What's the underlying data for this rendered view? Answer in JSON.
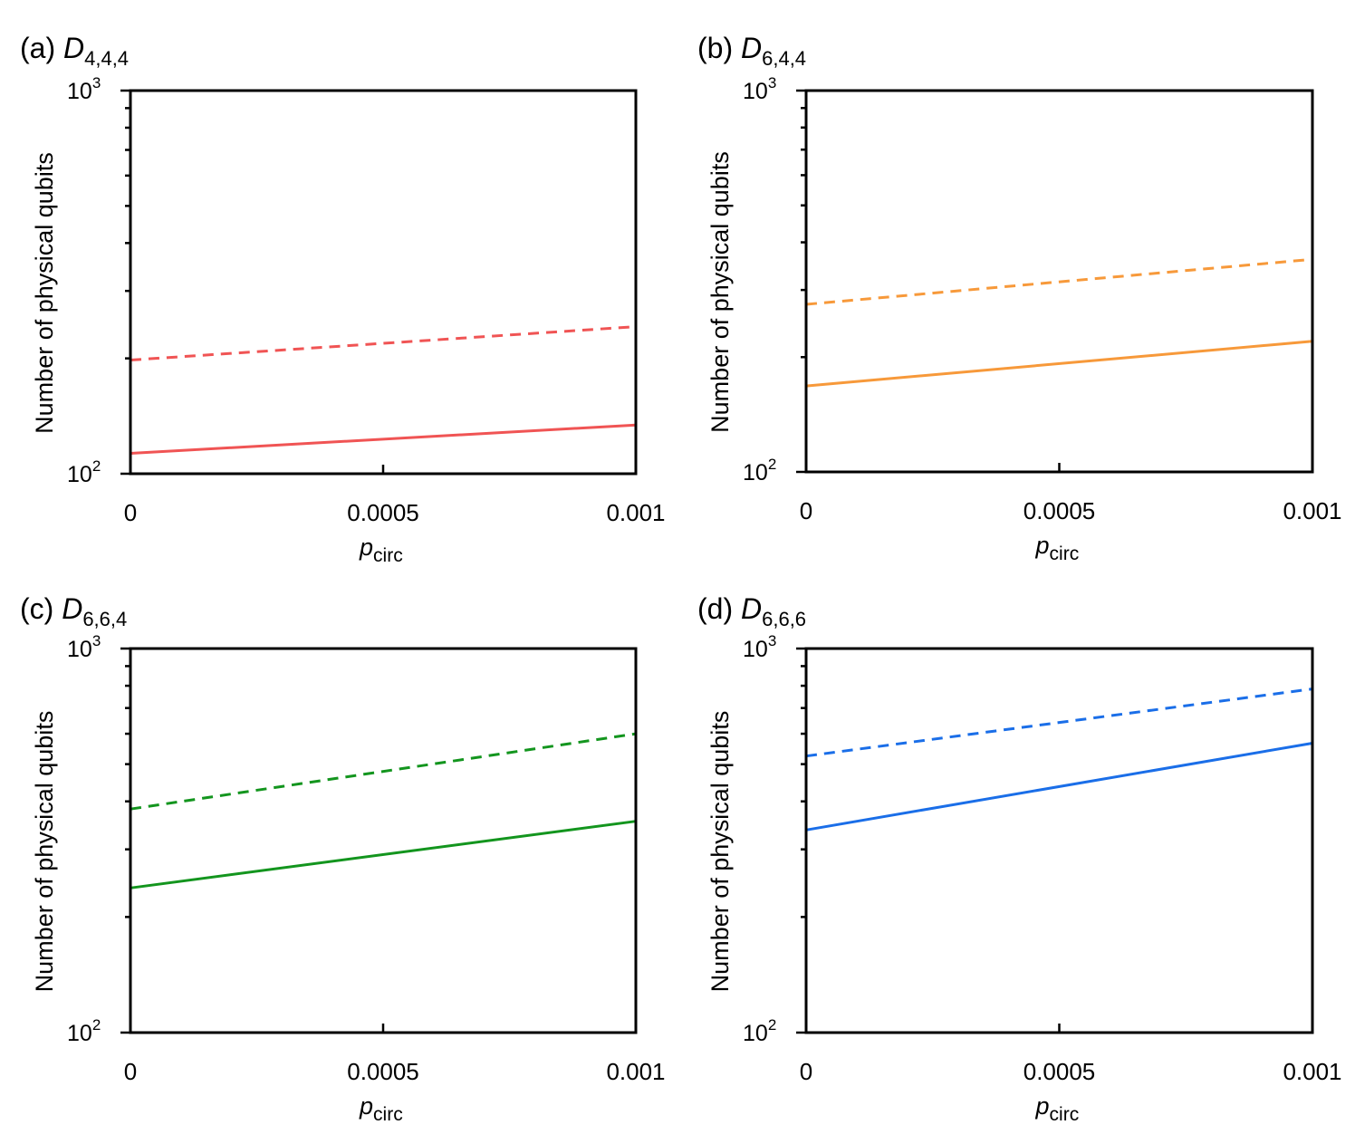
{
  "chart_data": [
    {
      "type": "line",
      "panel_label": "(a)",
      "title_symbol": "D",
      "title_subscript": "4,4,4",
      "xlabel_symbol": "p",
      "xlabel_subscript": "circ",
      "ylabel": "Number of physical qubits",
      "xscale": "linear",
      "yscale": "log",
      "xlim": [
        0,
        0.001
      ],
      "ylim": [
        100,
        1000
      ],
      "x_ticks": [
        0,
        0.0005,
        0.001
      ],
      "x_tick_labels": [
        "0",
        "0.0005",
        "0.001"
      ],
      "y_tick_labels": [
        {
          "base": "10",
          "exp": "2"
        },
        {
          "base": "10",
          "exp": "3"
        }
      ],
      "color": "#f05454",
      "series": [
        {
          "style": "dashed",
          "x": [
            0,
            0.001
          ],
          "values": [
            198,
            242
          ]
        },
        {
          "style": "solid",
          "x": [
            0,
            0.001
          ],
          "values": [
            113,
            134
          ]
        }
      ]
    },
    {
      "type": "line",
      "panel_label": "(b)",
      "title_symbol": "D",
      "title_subscript": "6,4,4",
      "xlabel_symbol": "p",
      "xlabel_subscript": "circ",
      "ylabel": "Number of physical qubits",
      "xscale": "linear",
      "yscale": "log",
      "xlim": [
        0,
        0.001
      ],
      "ylim": [
        100,
        1000
      ],
      "x_ticks": [
        0,
        0.0005,
        0.001
      ],
      "x_tick_labels": [
        "0",
        "0.0005",
        "0.001"
      ],
      "y_tick_labels": [
        {
          "base": "10",
          "exp": "2"
        },
        {
          "base": "10",
          "exp": "3"
        }
      ],
      "color": "#f7993a",
      "series": [
        {
          "style": "dashed",
          "x": [
            0,
            0.001
          ],
          "values": [
            275,
            361
          ]
        },
        {
          "style": "solid",
          "x": [
            0,
            0.001
          ],
          "values": [
            168,
            220
          ]
        }
      ]
    },
    {
      "type": "line",
      "panel_label": "(c)",
      "title_symbol": "D",
      "title_subscript": "6,6,4",
      "xlabel_symbol": "p",
      "xlabel_subscript": "circ",
      "ylabel": "Number of physical qubits",
      "xscale": "linear",
      "yscale": "log",
      "xlim": [
        0,
        0.001
      ],
      "ylim": [
        100,
        1000
      ],
      "x_ticks": [
        0,
        0.0005,
        0.001
      ],
      "x_tick_labels": [
        "0",
        "0.0005",
        "0.001"
      ],
      "y_tick_labels": [
        {
          "base": "10",
          "exp": "2"
        },
        {
          "base": "10",
          "exp": "3"
        }
      ],
      "color": "#13951e",
      "series": [
        {
          "style": "dashed",
          "x": [
            0,
            0.001
          ],
          "values": [
            382,
            600
          ]
        },
        {
          "style": "solid",
          "x": [
            0,
            0.001
          ],
          "values": [
            238,
            355
          ]
        }
      ]
    },
    {
      "type": "line",
      "panel_label": "(d)",
      "title_symbol": "D",
      "title_subscript": "6,6,6",
      "xlabel_symbol": "p",
      "xlabel_subscript": "circ",
      "ylabel": "Number of physical qubits",
      "xscale": "linear",
      "yscale": "log",
      "xlim": [
        0,
        0.001
      ],
      "ylim": [
        100,
        1000
      ],
      "x_ticks": [
        0,
        0.0005,
        0.001
      ],
      "x_tick_labels": [
        "0",
        "0.0005",
        "0.001"
      ],
      "y_tick_labels": [
        {
          "base": "10",
          "exp": "2"
        },
        {
          "base": "10",
          "exp": "3"
        }
      ],
      "color": "#1a6ee8",
      "series": [
        {
          "style": "dashed",
          "x": [
            0,
            0.001
          ],
          "values": [
            525,
            785
          ]
        },
        {
          "style": "solid",
          "x": [
            0,
            0.001
          ],
          "values": [
            337,
            567
          ]
        }
      ]
    }
  ]
}
